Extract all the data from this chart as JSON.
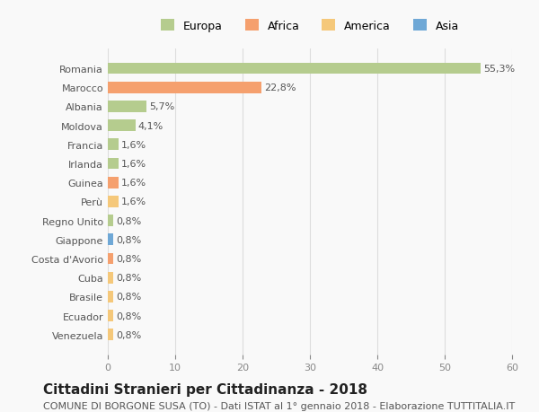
{
  "countries": [
    "Venezuela",
    "Ecuador",
    "Brasile",
    "Cuba",
    "Costa d'Avorio",
    "Giappone",
    "Regno Unito",
    "Perù",
    "Guinea",
    "Irlanda",
    "Francia",
    "Moldova",
    "Albania",
    "Marocco",
    "Romania"
  ],
  "values": [
    0.8,
    0.8,
    0.8,
    0.8,
    0.8,
    0.8,
    0.8,
    1.6,
    1.6,
    1.6,
    1.6,
    4.1,
    5.7,
    22.8,
    55.3
  ],
  "labels": [
    "0,8%",
    "0,8%",
    "0,8%",
    "0,8%",
    "0,8%",
    "0,8%",
    "0,8%",
    "1,6%",
    "1,6%",
    "1,6%",
    "1,6%",
    "4,1%",
    "5,7%",
    "22,8%",
    "55,3%"
  ],
  "colors": [
    "#f5c87a",
    "#f5c87a",
    "#f5c87a",
    "#f5c87a",
    "#f5a06e",
    "#6fa8d6",
    "#b5cc8e",
    "#f5c87a",
    "#f5a06e",
    "#b5cc8e",
    "#b5cc8e",
    "#b5cc8e",
    "#b5cc8e",
    "#f5a06e",
    "#b5cc8e"
  ],
  "legend_labels": [
    "Europa",
    "Africa",
    "America",
    "Asia"
  ],
  "legend_colors": [
    "#b5cc8e",
    "#f5a06e",
    "#f5c87a",
    "#6fa8d6"
  ],
  "title": "Cittadini Stranieri per Cittadinanza - 2018",
  "subtitle": "COMUNE DI BORGONE SUSA (TO) - Dati ISTAT al 1° gennaio 2018 - Elaborazione TUTTITALIA.IT",
  "xlim": [
    0,
    60
  ],
  "xticks": [
    0,
    10,
    20,
    30,
    40,
    50,
    60
  ],
  "background_color": "#f9f9f9",
  "bar_height": 0.6,
  "grid_color": "#dddddd",
  "title_fontsize": 11,
  "subtitle_fontsize": 8,
  "label_fontsize": 8,
  "tick_fontsize": 8,
  "legend_fontsize": 9
}
